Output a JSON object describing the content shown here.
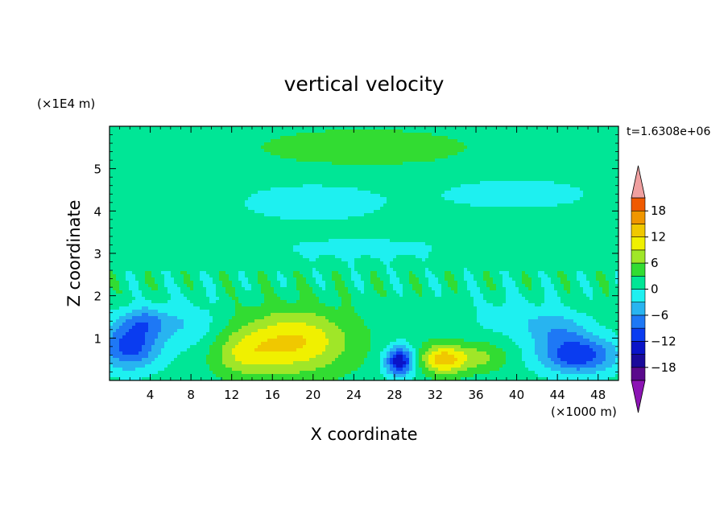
{
  "chart_data": {
    "type": "heatmap",
    "title": "vertical velocity",
    "xlabel": "X coordinate",
    "ylabel": "Z coordinate",
    "x_unit": "(×1000 m)",
    "y_unit": "(×1E4 m)",
    "time_label": "t=1.6308e+06",
    "xlim": [
      0,
      50
    ],
    "ylim": [
      0,
      6
    ],
    "x_ticks": [
      4,
      8,
      12,
      16,
      20,
      24,
      28,
      32,
      36,
      40,
      44,
      48
    ],
    "y_ticks": [
      1,
      2,
      3,
      4,
      5
    ],
    "grid": false,
    "colorbar": {
      "levels": [
        -21,
        -18,
        -15,
        -12,
        -9,
        -6,
        -3,
        0,
        3,
        6,
        9,
        12,
        15,
        18,
        21
      ],
      "colors": [
        "#5a0a8c",
        "#1a0a9a",
        "#0a14c8",
        "#0a3cf0",
        "#1e78f5",
        "#28b4f0",
        "#1ef0f0",
        "#00e696",
        "#32dc32",
        "#a0e628",
        "#f0f000",
        "#f0c800",
        "#f09600",
        "#f05a00",
        "#e61e1e"
      ],
      "over_color": "#f0a0a0",
      "under_color": "#8c14b4",
      "tick_labels": [
        "18",
        "12",
        "6",
        "0",
        "−6",
        "−12",
        "−18"
      ],
      "tick_values": [
        18,
        12,
        6,
        0,
        -6,
        -12,
        -18
      ]
    },
    "features": [
      {
        "x": 2.0,
        "z": 0.8,
        "amp": -12,
        "sx": 3.0,
        "sz": 0.55
      },
      {
        "x": 3.5,
        "z": 1.4,
        "amp": -7,
        "sx": 2.5,
        "sz": 0.35
      },
      {
        "x": 18.0,
        "z": 0.9,
        "amp": 11,
        "sx": 5.5,
        "sz": 0.75
      },
      {
        "x": 13.0,
        "z": 0.6,
        "amp": 5,
        "sx": 3.0,
        "sz": 0.5
      },
      {
        "x": 28.5,
        "z": 0.45,
        "amp": -16,
        "sx": 1.4,
        "sz": 0.35
      },
      {
        "x": 32.8,
        "z": 0.5,
        "amp": 12,
        "sx": 2.2,
        "sz": 0.35
      },
      {
        "x": 36.5,
        "z": 0.55,
        "amp": 5,
        "sx": 2.5,
        "sz": 0.35
      },
      {
        "x": 46.0,
        "z": 0.6,
        "amp": -13,
        "sx": 3.8,
        "sz": 0.45
      },
      {
        "x": 44.0,
        "z": 1.2,
        "amp": -5,
        "sx": 3.0,
        "sz": 0.4
      },
      {
        "x": 8.0,
        "z": 1.3,
        "amp": -4,
        "sx": 3.0,
        "sz": 0.6
      },
      {
        "x": 40.0,
        "z": 1.5,
        "amp": -3,
        "sx": 5.0,
        "sz": 0.5
      },
      {
        "x": 25.0,
        "z": 5.5,
        "amp": 3,
        "sx": 12.0,
        "sz": 0.5
      },
      {
        "x": 20.0,
        "z": 4.2,
        "amp": -3,
        "sx": 8.0,
        "sz": 0.5
      },
      {
        "x": 40.0,
        "z": 4.4,
        "amp": -3,
        "sx": 8.0,
        "sz": 0.4
      },
      {
        "x": 25.0,
        "z": 3.1,
        "amp": -2.5,
        "sx": 10.0,
        "sz": 0.3
      }
    ],
    "background": 1.5
  }
}
